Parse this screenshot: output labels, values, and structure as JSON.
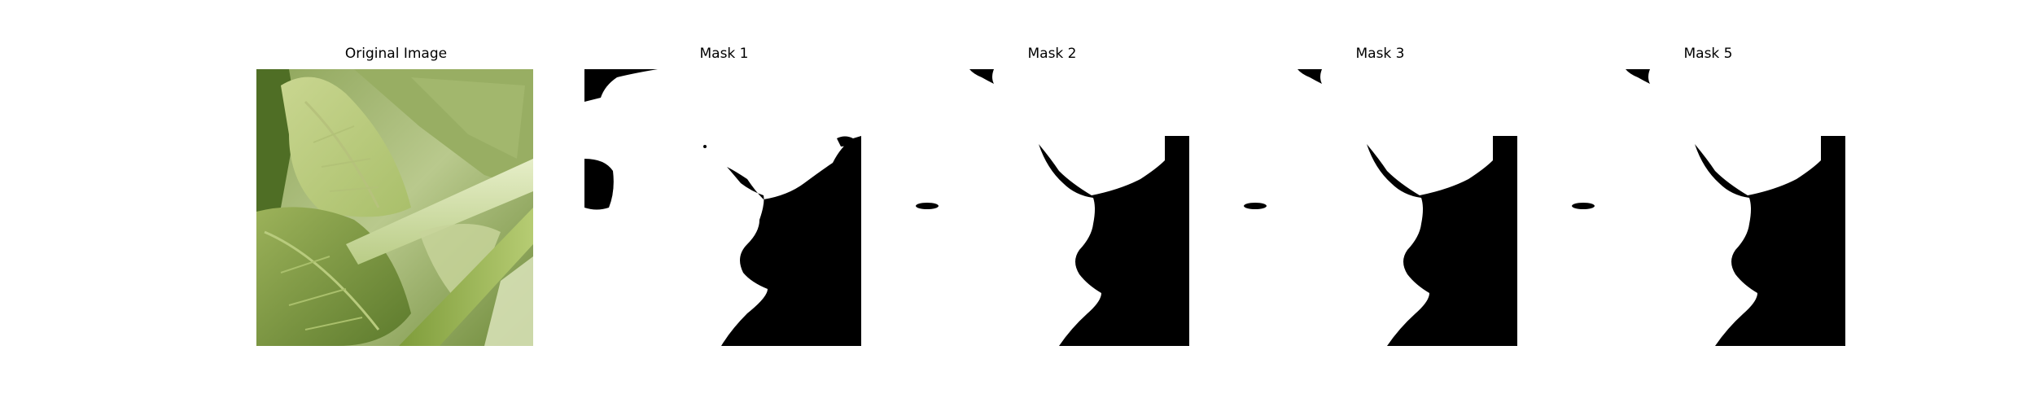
{
  "figure": {
    "panels": [
      {
        "title": "Original Image",
        "kind": "photo"
      },
      {
        "title": "Mask 1",
        "kind": "mask"
      },
      {
        "title": "Mask 2",
        "kind": "mask"
      },
      {
        "title": "Mask 3",
        "kind": "mask"
      },
      {
        "title": "Mask 5",
        "kind": "mask"
      }
    ]
  },
  "colors": {
    "mask_foreground": "#000000",
    "mask_background": "#ffffff",
    "leaf_light": "#c9d99a",
    "leaf_mid": "#9bb45c",
    "leaf_dark": "#5f7f2e",
    "stem": "#d9e6b4"
  }
}
